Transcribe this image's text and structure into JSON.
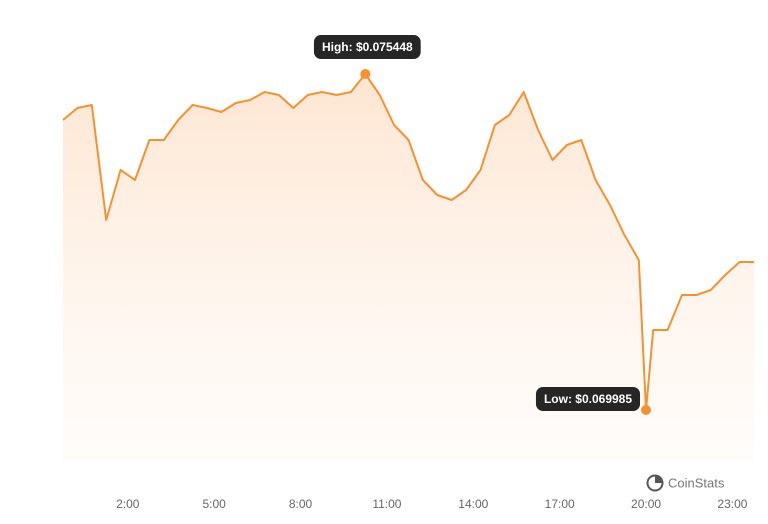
{
  "chart_data": {
    "type": "line",
    "color": "#f5922f",
    "x": [
      -0.25,
      0.25,
      0.75,
      1.25,
      1.75,
      2.25,
      2.75,
      3.25,
      3.75,
      4.25,
      4.75,
      5.25,
      5.75,
      6.25,
      6.75,
      7.25,
      7.75,
      8.25,
      8.75,
      9.25,
      9.75,
      10.25,
      10.75,
      11.25,
      11.75,
      12.25,
      12.75,
      13.25,
      13.75,
      14.25,
      14.75,
      15.25,
      15.75,
      16.25,
      16.75,
      17.25,
      17.75,
      18.25,
      18.75,
      19.25,
      19.75,
      20,
      20.25,
      20.75,
      21.25,
      21.75,
      22.25,
      22.75,
      23.25,
      23.75
    ],
    "values": [
      0.0747,
      0.074895,
      0.074944,
      0.073074,
      0.073887,
      0.073725,
      0.074375,
      0.074375,
      0.0747,
      0.074944,
      0.074895,
      0.07483,
      0.074977,
      0.075025,
      0.075155,
      0.075107,
      0.074895,
      0.075107,
      0.075155,
      0.075107,
      0.075155,
      0.075448,
      0.075107,
      0.074619,
      0.074375,
      0.073725,
      0.073481,
      0.073399,
      0.073562,
      0.073887,
      0.074619,
      0.074781,
      0.075155,
      0.074538,
      0.07405,
      0.074294,
      0.074375,
      0.073725,
      0.073318,
      0.07283,
      0.072424,
      0.069985,
      0.071286,
      0.071286,
      0.071855,
      0.071855,
      0.071936,
      0.07218,
      0.072391,
      0.072391
    ],
    "xlim": [
      -0.25,
      23.75
    ],
    "xticks": [
      {
        "value": 2,
        "label": "2:00"
      },
      {
        "value": 5,
        "label": "5:00"
      },
      {
        "value": 8,
        "label": "8:00"
      },
      {
        "value": 11,
        "label": "11:00"
      },
      {
        "value": 14,
        "label": "14:00"
      },
      {
        "value": 17,
        "label": "17:00"
      },
      {
        "value": 20,
        "label": "20:00"
      },
      {
        "value": 23,
        "label": "23:00"
      }
    ],
    "annotations": [
      {
        "label": "High: $0.075448",
        "index": 21
      },
      {
        "label": "Low: $0.069985",
        "index": 41
      }
    ],
    "watermark": "CoinStats"
  }
}
